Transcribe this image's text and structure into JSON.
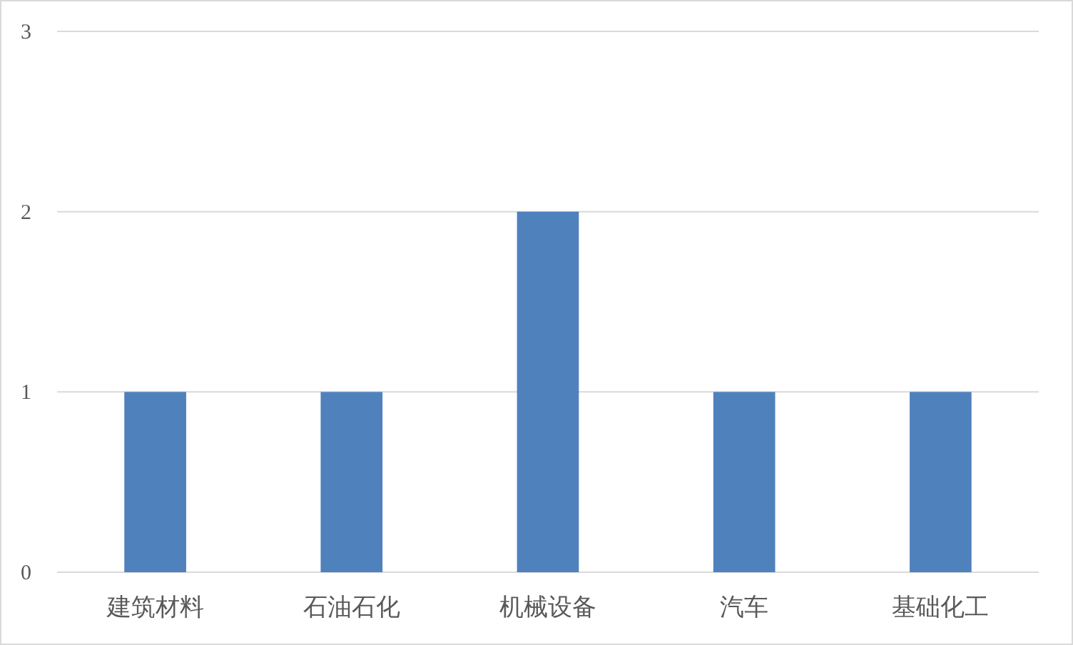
{
  "chart_data": {
    "type": "bar",
    "categories": [
      "建筑材料",
      "石油石化",
      "机械设备",
      "汽车",
      "基础化工"
    ],
    "values": [
      1,
      1,
      2,
      1,
      1
    ],
    "color": "#4f81bd",
    "ylim": [
      0,
      3
    ],
    "yticks": [
      0,
      1,
      2,
      3
    ],
    "grid": "y"
  }
}
